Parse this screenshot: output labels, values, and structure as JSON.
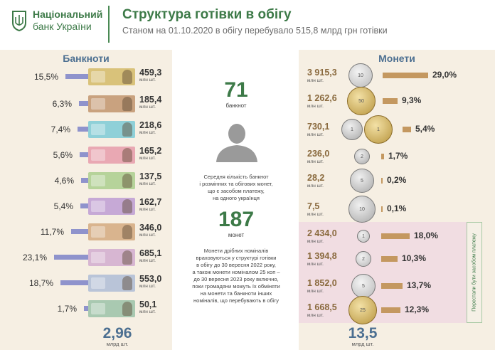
{
  "header": {
    "bank_line1": "Національний",
    "bank_line2": "банк України",
    "title": "Структура готівки в обігу",
    "subtitle": "Станом на 01.10.2020 в обігу перебувало 515,8 млрд грн готівки"
  },
  "banknotes": {
    "title": "Банкноти",
    "unit": "млн шт.",
    "rows": [
      {
        "pct": "15,5%",
        "value": "459,3",
        "percent": 15.5,
        "color": "#d9c27a"
      },
      {
        "pct": "6,3%",
        "value": "185,4",
        "percent": 6.3,
        "color": "#c9a27f"
      },
      {
        "pct": "7,4%",
        "value": "218,6",
        "percent": 7.4,
        "color": "#8fd0d8"
      },
      {
        "pct": "5,6%",
        "value": "165,2",
        "percent": 5.6,
        "color": "#e9a8b3"
      },
      {
        "pct": "4,6%",
        "value": "137,5",
        "percent": 4.6,
        "color": "#b6d39a"
      },
      {
        "pct": "5,4%",
        "value": "162,7",
        "percent": 5.4,
        "color": "#c6a9d6"
      },
      {
        "pct": "11,7%",
        "value": "346,0",
        "percent": 11.7,
        "color": "#d9b48e"
      },
      {
        "pct": "23,1%",
        "value": "685,1",
        "percent": 23.1,
        "color": "#d7b6d2"
      },
      {
        "pct": "18,7%",
        "value": "553,0",
        "percent": 18.7,
        "color": "#b9c4d8"
      },
      {
        "pct": "1,7%",
        "value": "50,1",
        "percent": 1.7,
        "color": "#a9c9b1"
      }
    ],
    "total": "2,96",
    "total_unit": "млрд шт."
  },
  "middle": {
    "banknotes_count": "71",
    "banknotes_label": "банкнот",
    "avg_text_1": "Середня кількість банкнот",
    "avg_text_2": "і розмінних та обігових монет,",
    "avg_text_3": "що є засобом платежу,",
    "avg_text_4": "на одного українця",
    "coins_count": "187",
    "coins_label": "монет",
    "note_1": "Монети дрібних номіналів",
    "note_2": "враховуються у структурі готівки",
    "note_3": "в обігу до 30 вересня 2022 року,",
    "note_4": "а також монети  номіналом 25 коп –",
    "note_5": "до 30 вересня 2023 року включно,",
    "note_6": "поки громадяни можуть їх обміняти",
    "note_7": "на монети та банкноти інших",
    "note_8": "номіналів, що перебувають в обігу"
  },
  "coins": {
    "title": "Монети",
    "unit": "млн шт.",
    "rows": [
      {
        "value": "3 915,3",
        "pct": "29,0%",
        "percent": 29.0
      },
      {
        "value": "1 262,6",
        "pct": "9,3%",
        "percent": 9.3
      },
      {
        "value": "730,1",
        "pct": "5,4%",
        "percent": 5.4
      },
      {
        "value": "236,0",
        "pct": "1,7%",
        "percent": 1.7
      },
      {
        "value": "28,2",
        "pct": "0,2%",
        "percent": 0.2
      },
      {
        "value": "7,5",
        "pct": "0,1%",
        "percent": 0.1
      },
      {
        "value": "2 434,0",
        "pct": "18,0%",
        "percent": 18.0
      },
      {
        "value": "1 394,8",
        "pct": "10,3%",
        "percent": 10.3
      },
      {
        "value": "1 852,0",
        "pct": "13,7%",
        "percent": 13.7
      },
      {
        "value": "1 668,5",
        "pct": "12,3%",
        "percent": 12.3
      }
    ],
    "side_label": "Перестали бути засобом платежу",
    "total": "13,5",
    "total_unit": "млрд шт."
  }
}
